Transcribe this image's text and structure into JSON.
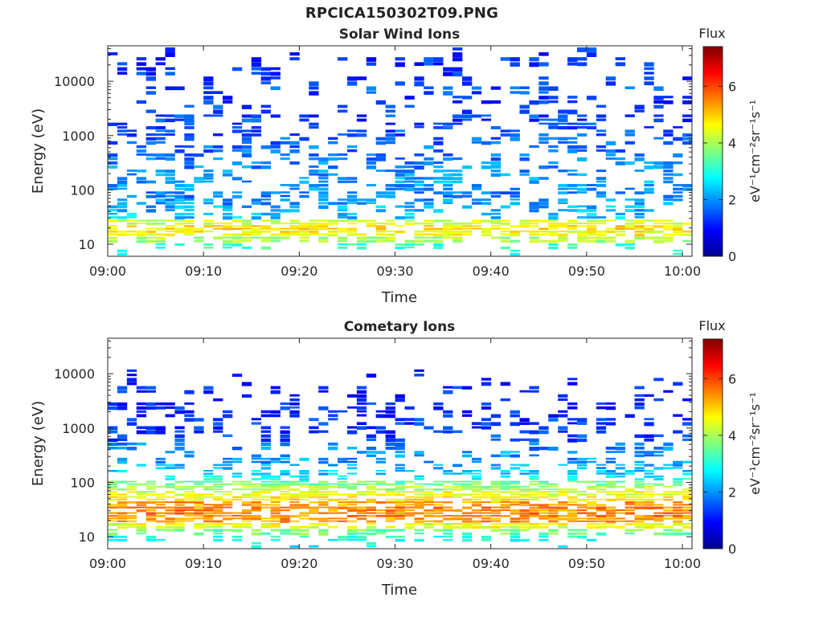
{
  "figure": {
    "title": "RPCICA150302T09.PNG"
  },
  "chart_data": [
    {
      "type": "heatmap",
      "title": "Solar Wind Ions",
      "xlabel": "Time",
      "ylabel": "Energy (eV)",
      "x_ticks": [
        "09:00",
        "09:10",
        "09:20",
        "09:30",
        "09:40",
        "09:50",
        "10:00"
      ],
      "x_range": [
        "09:00",
        "10:01"
      ],
      "y_ticks": [
        10,
        100,
        1000,
        10000
      ],
      "y_scale": "log",
      "ylim": [
        6,
        45000
      ],
      "colorbar": {
        "label": "Flux",
        "units": "eV⁻¹cm⁻²sr⁻¹s⁻¹",
        "ticks": [
          0,
          2,
          4,
          6
        ],
        "range": [
          0,
          7.4
        ],
        "colormap": "jet"
      },
      "profile": {
        "description_energy_eV": [
          7,
          9,
          12,
          16,
          20,
          25,
          32,
          45,
          60,
          80,
          110,
          150,
          200,
          280,
          400,
          550,
          800,
          1100,
          1500,
          2000,
          3000,
          4500,
          6500,
          10000,
          15000,
          22000,
          35000
        ],
        "typical_flux": [
          2.8,
          3.2,
          4.0,
          4.6,
          4.8,
          4.3,
          2.4,
          2.2,
          2.0,
          1.8,
          2.0,
          2.1,
          2.0,
          1.9,
          1.8,
          1.7,
          1.6,
          1.5,
          1.4,
          1.4,
          1.5,
          1.4,
          1.5,
          1.4,
          1.3,
          1.3,
          1.2
        ],
        "occurrence": [
          0.15,
          0.35,
          0.7,
          0.9,
          0.95,
          0.95,
          0.45,
          0.5,
          0.55,
          0.55,
          0.5,
          0.5,
          0.5,
          0.5,
          0.5,
          0.45,
          0.45,
          0.4,
          0.35,
          0.35,
          0.3,
          0.3,
          0.25,
          0.3,
          0.25,
          0.25,
          0.15
        ]
      }
    },
    {
      "type": "heatmap",
      "title": "Cometary Ions",
      "xlabel": "Time",
      "ylabel": "Energy (eV)",
      "x_ticks": [
        "09:00",
        "09:10",
        "09:20",
        "09:30",
        "09:40",
        "09:50",
        "10:00"
      ],
      "x_range": [
        "09:00",
        "10:01"
      ],
      "y_ticks": [
        10,
        100,
        1000,
        10000
      ],
      "y_scale": "log",
      "ylim": [
        6,
        45000
      ],
      "colorbar": {
        "label": "Flux",
        "units": "eV⁻¹cm⁻²sr⁻¹s⁻¹",
        "ticks": [
          0,
          2,
          4,
          6
        ],
        "range": [
          0,
          7.4
        ],
        "colormap": "jet"
      },
      "profile": {
        "description_energy_eV": [
          7,
          9,
          12,
          16,
          20,
          25,
          32,
          40,
          50,
          62,
          78,
          95,
          120,
          150,
          190,
          250,
          320,
          450,
          650,
          900,
          1300,
          1800,
          2500,
          3500,
          5000,
          7000,
          10000
        ],
        "typical_flux": [
          2.8,
          3.0,
          3.6,
          4.5,
          5.3,
          5.5,
          5.5,
          5.3,
          4.7,
          4.4,
          4.0,
          3.6,
          2.8,
          2.4,
          2.2,
          2.0,
          2.0,
          1.9,
          1.4,
          1.3,
          1.3,
          1.2,
          1.2,
          1.1,
          1.2,
          1.1,
          1.1
        ],
        "occurrence": [
          0.1,
          0.35,
          0.6,
          0.95,
          1.0,
          1.0,
          1.0,
          1.0,
          1.0,
          1.0,
          0.98,
          0.95,
          0.45,
          0.45,
          0.4,
          0.35,
          0.3,
          0.2,
          0.3,
          0.45,
          0.5,
          0.45,
          0.4,
          0.25,
          0.2,
          0.15,
          0.06
        ]
      }
    }
  ]
}
